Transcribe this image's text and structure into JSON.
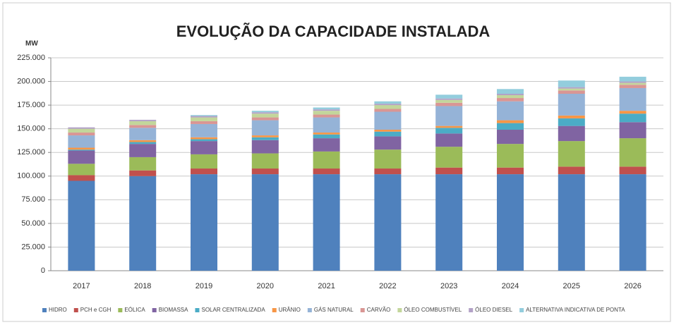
{
  "chart_data": {
    "type": "stacked_bar",
    "title": "EVOLUÇÃO DA CAPACIDADE INSTALADA",
    "y_label": "MW",
    "categories": [
      "2017",
      "2018",
      "2019",
      "2020",
      "2021",
      "2022",
      "2023",
      "2024",
      "2025",
      "2026"
    ],
    "series": [
      {
        "name": "HIDRO",
        "color": "#4f81bd",
        "values": [
          95000,
          100000,
          102000,
          102000,
          102000,
          102000,
          102000,
          102000,
          102000,
          102000
        ]
      },
      {
        "name": "PCH e CGH",
        "color": "#c0504d",
        "values": [
          6000,
          6000,
          6000,
          6000,
          6000,
          6000,
          7000,
          7000,
          8000,
          8000
        ]
      },
      {
        "name": "EÓLICA",
        "color": "#9bbb59",
        "values": [
          12000,
          14000,
          15000,
          16000,
          18000,
          20000,
          22000,
          25000,
          27000,
          30000
        ]
      },
      {
        "name": "BIOMASSA",
        "color": "#8064a2",
        "values": [
          14000,
          14000,
          14000,
          14000,
          14000,
          14000,
          14000,
          15000,
          16000,
          17000
        ]
      },
      {
        "name": "SOLAR CENTRALIZADA",
        "color": "#4bacc6",
        "values": [
          1000,
          2000,
          2000,
          3000,
          4000,
          5000,
          6000,
          7000,
          8000,
          9000
        ]
      },
      {
        "name": "URÂNIO",
        "color": "#f79646",
        "values": [
          2000,
          2000,
          2000,
          2000,
          2000,
          2000,
          2000,
          3000,
          3000,
          3000
        ]
      },
      {
        "name": "GÁS NATURAL",
        "color": "#95b3d7",
        "values": [
          13000,
          13000,
          14000,
          16000,
          16000,
          19000,
          21000,
          20000,
          23000,
          24000
        ]
      },
      {
        "name": "CARVÃO",
        "color": "#d99694",
        "values": [
          3000,
          3000,
          3000,
          3000,
          3000,
          3000,
          3500,
          3500,
          3500,
          3500
        ]
      },
      {
        "name": "ÓLEO COMBUSTÍVEL",
        "color": "#c3d69b",
        "values": [
          4000,
          4000,
          4000,
          4000,
          4000,
          4000,
          3000,
          3000,
          2000,
          2000
        ]
      },
      {
        "name": "ÓLEO DIESEL",
        "color": "#b3a2c7",
        "values": [
          1500,
          1500,
          1500,
          1500,
          1500,
          1500,
          1500,
          1500,
          1500,
          1500
        ]
      },
      {
        "name": "ALTERNATIVA INDICATIVA DE PONTA",
        "color": "#93cddd",
        "values": [
          0,
          0,
          1000,
          1500,
          2000,
          2500,
          4000,
          5000,
          7000,
          5000
        ]
      }
    ],
    "ylim": [
      0,
      225000
    ],
    "yticks": [
      0,
      {
        "value": 25000,
        "label": "25.000"
      },
      {
        "value": 50000,
        "label": "50.000"
      },
      {
        "value": 75000,
        "label": "75.000"
      },
      {
        "value": 100000,
        "label": "100.000"
      },
      {
        "value": 125000,
        "label": "125.000"
      },
      {
        "value": 150000,
        "label": "150.000"
      },
      {
        "value": 175000,
        "label": "175.000"
      },
      {
        "value": 200000,
        "label": "200.000"
      },
      {
        "value": 225000,
        "label": "225.000"
      }
    ],
    "grid": true,
    "legend": "bottom"
  }
}
